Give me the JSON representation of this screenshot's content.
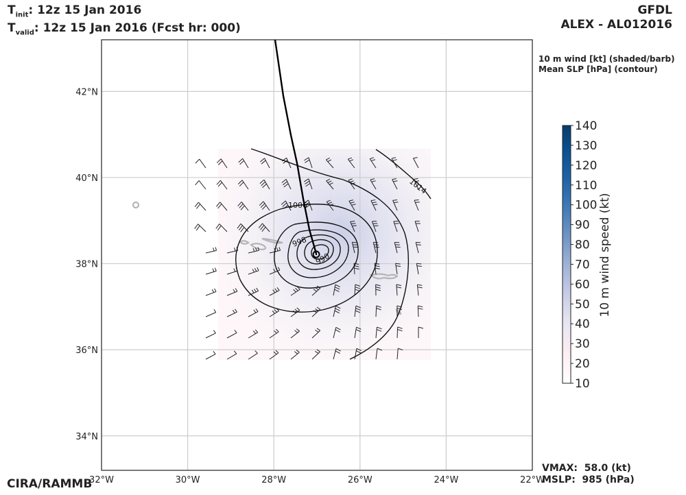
{
  "header": {
    "tinit_label": "init",
    "tinit_value": ":  12z 15 Jan 2016",
    "tvalid_label": "valid",
    "tvalid_value": ": 12z 15 Jan 2016 (Fcst hr: 000)",
    "model": "GFDL",
    "storm": "ALEX - AL012016"
  },
  "legend": {
    "line1": "10 m wind [kt] (shaded/barb)",
    "line2": "Mean SLP [hPa] (contour)"
  },
  "footer": {
    "credit": "CIRA/RAMMB",
    "vmax": "VMAX:  58.0 (kt)",
    "mslp": "MSLP:  985 (hPa)"
  },
  "map": {
    "lon_range": [
      -32,
      -22
    ],
    "lat_range": [
      33.2,
      43.2
    ],
    "lon_ticks": [
      "32°W",
      "30°W",
      "28°W",
      "26°W",
      "24°W",
      "22°W"
    ],
    "lat_ticks": [
      "34°N",
      "36°N",
      "38°N",
      "40°N",
      "42°N"
    ],
    "contour_labels": [
      "1014",
      "1006",
      "998",
      "990"
    ],
    "storm_center": [
      -27.0,
      38.3
    ]
  },
  "colorbar": {
    "label": "10 m wind speed (kt)",
    "ticks": [
      "10",
      "20",
      "30",
      "40",
      "50",
      "60",
      "70",
      "80",
      "90",
      "100",
      "110",
      "120",
      "130",
      "140"
    ],
    "colors": [
      "#ffffff",
      "#fdeef2",
      "#e8e6f2",
      "#c9cee6",
      "#9fb2d6",
      "#6f95c6",
      "#3e79b6",
      "#1d62a6",
      "#0a4f8e",
      "#083b6b"
    ]
  }
}
